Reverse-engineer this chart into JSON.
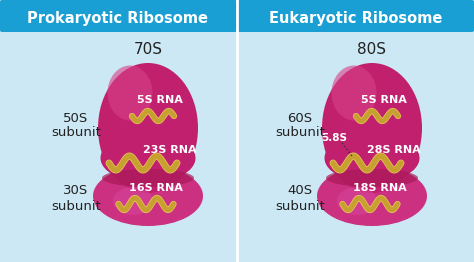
{
  "background_color": "#cce8f4",
  "header_color": "#1a9fd4",
  "header_text_color": "#ffffff",
  "ribosome_large_color": "#c0206e",
  "ribosome_small_color": "#cc3080",
  "ribosome_large_highlight": "#d04080",
  "rna_color": "#c8a030",
  "rna_outline": "#e8c050",
  "label_white": "#ffffff",
  "label_dark": "#222222",
  "prokaryote_title": "Prokaryotic Ribosome",
  "eukaryote_title": "Eukaryotic Ribosome",
  "prok_top_label": "70S",
  "euk_top_label": "80S",
  "prok_5s": "5S RNA",
  "prok_23s": "23S RNA",
  "prok_16s": "16S RNA",
  "prok_50s": "50S",
  "prok_50s_sub": "subunit",
  "prok_30s": "30S",
  "prok_30s_sub": "subunit",
  "euk_5s": "5S RNA",
  "euk_28s": "28S RNA",
  "euk_18s": "18S RNA",
  "euk_58s": "5.8S",
  "euk_60s": "60S",
  "euk_60s_sub": "subunit",
  "euk_40s": "40S",
  "euk_40s_sub": "subunit"
}
